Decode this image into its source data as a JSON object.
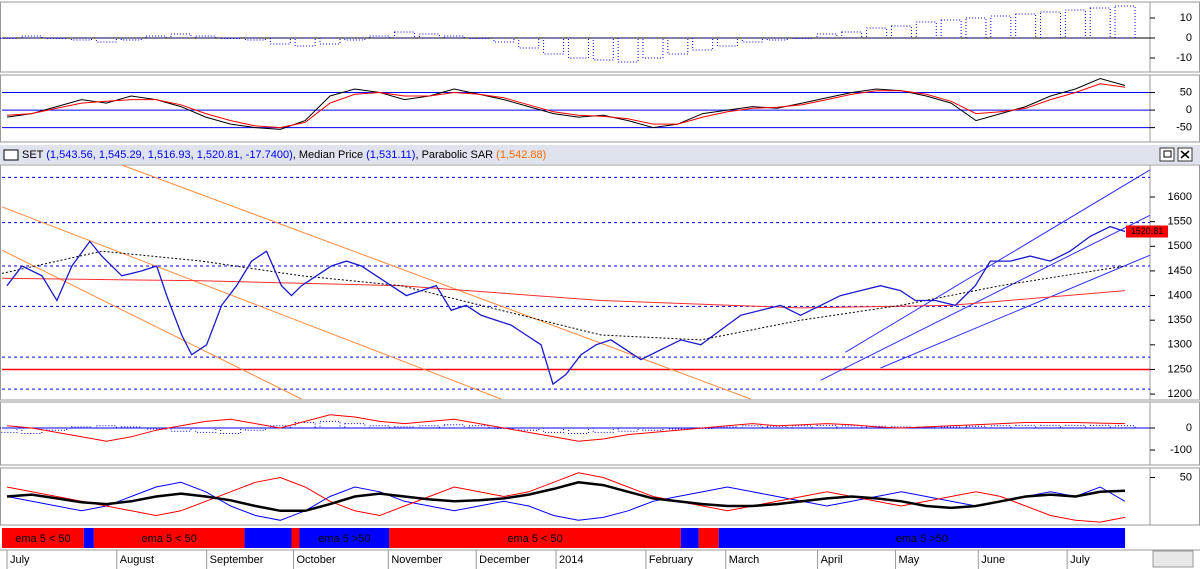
{
  "chart_data": {
    "type": "line",
    "xlim": [
      0,
      1150
    ],
    "xticks": [
      {
        "value": 5,
        "label": "July"
      },
      {
        "value": 115,
        "label": "August"
      },
      {
        "value": 205,
        "label": "September"
      },
      {
        "value": 292,
        "label": "October"
      },
      {
        "value": 387,
        "label": "November"
      },
      {
        "value": 475,
        "label": "December"
      },
      {
        "value": 555,
        "label": "2014"
      },
      {
        "value": 645,
        "label": "February"
      },
      {
        "value": 725,
        "label": "March"
      },
      {
        "value": 817,
        "label": "April"
      },
      {
        "value": 895,
        "label": "May"
      },
      {
        "value": 978,
        "label": "June"
      },
      {
        "value": 1067,
        "label": "July"
      }
    ],
    "header": [
      {
        "text": "SET ",
        "color": "#000000"
      },
      {
        "text": "(1,543.56, 1,545.29, 1,516.93, 1,520.81, -17.7400)",
        "color": "#0000ff"
      },
      {
        "text": ", Median Price ",
        "color": "#000000"
      },
      {
        "text": "(1,531.11)",
        "color": "#0000ff"
      },
      {
        "text": ", Parabolic SAR ",
        "color": "#000000"
      },
      {
        "text": "(1,542.88)",
        "color": "#ff6a00"
      }
    ],
    "macd": {
      "ylim": [
        -17,
        18
      ],
      "yticks": [
        10,
        0,
        -10
      ],
      "color": "#0000ff",
      "values": [
        0,
        1,
        0,
        -1,
        -2,
        -1,
        1,
        2,
        1,
        0,
        -1,
        -3,
        -4,
        -3,
        -1,
        1,
        3,
        2,
        1,
        0,
        -2,
        -5,
        -8,
        -10,
        -11,
        -12,
        -10,
        -8,
        -6,
        -4,
        -2,
        -1,
        0,
        2,
        3,
        5,
        6,
        8,
        9,
        10,
        11,
        12,
        13,
        14,
        15,
        16
      ]
    },
    "stochastic": {
      "ylim": [
        -91,
        100
      ],
      "yticks": [
        50,
        0,
        -50
      ],
      "levels": [
        50,
        0,
        -50
      ],
      "level_color": "#0000ff",
      "series": [
        {
          "color": "#000000",
          "values": [
            -20,
            -10,
            10,
            30,
            20,
            40,
            30,
            10,
            -20,
            -40,
            -50,
            -55,
            -30,
            40,
            60,
            50,
            30,
            40,
            60,
            45,
            30,
            10,
            -10,
            -20,
            -15,
            -30,
            -50,
            -40,
            -10,
            0,
            10,
            5,
            20,
            35,
            50,
            60,
            55,
            40,
            20,
            -30,
            -10,
            10,
            40,
            60,
            90,
            70
          ]
        },
        {
          "color": "#ff0000",
          "values": [
            -15,
            -10,
            5,
            20,
            25,
            30,
            30,
            15,
            -10,
            -30,
            -45,
            -50,
            -35,
            20,
            45,
            50,
            40,
            40,
            50,
            45,
            35,
            15,
            -5,
            -15,
            -18,
            -25,
            -40,
            -40,
            -20,
            -5,
            5,
            8,
            15,
            30,
            45,
            55,
            55,
            45,
            25,
            -10,
            -5,
            5,
            30,
            50,
            75,
            65
          ]
        }
      ]
    },
    "main": {
      "ylim": [
        1188,
        1665
      ],
      "yticks": [
        1600,
        1550,
        1500,
        1450,
        1400,
        1350,
        1300,
        1250,
        1200
      ],
      "last_value_label": "1520.81",
      "levels": [
        {
          "value": 1250,
          "color": "#ff0000",
          "dashed": false
        },
        {
          "value": 1210,
          "color": "#0000ff",
          "dashed": true
        },
        {
          "value": 1275,
          "color": "#0000ff",
          "dashed": true
        },
        {
          "value": 1378,
          "color": "#0000ff",
          "dashed": true
        },
        {
          "value": 1460,
          "color": "#0000ff",
          "dashed": true
        },
        {
          "value": 1548,
          "color": "#0000ff",
          "dashed": true
        },
        {
          "value": 1640,
          "color": "#0000ff",
          "dashed": true
        }
      ],
      "trendlines": [
        {
          "color": "#ff8c40",
          "x": [
            120,
            750
          ],
          "values": [
            1665,
            1190
          ]
        },
        {
          "color": "#ff8c40",
          "x": [
            0,
            500
          ],
          "values": [
            1580,
            1190
          ]
        },
        {
          "color": "#ff8c40",
          "x": [
            0,
            300
          ],
          "values": [
            1492,
            1190
          ]
        },
        {
          "color": "#3030ff",
          "x": [
            845,
            1150
          ],
          "values": [
            1285,
            1655
          ]
        },
        {
          "color": "#3030ff",
          "x": [
            820,
            1150
          ],
          "values": [
            1228,
            1563
          ]
        },
        {
          "color": "#3030ff",
          "x": [
            880,
            1150
          ],
          "values": [
            1253,
            1482
          ]
        }
      ],
      "series": [
        {
          "color": "#ff3030",
          "dashed": false,
          "width": 1,
          "x": [
            0,
            200,
            400,
            600,
            800,
            950,
            1125
          ],
          "values": [
            1435,
            1430,
            1420,
            1390,
            1375,
            1380,
            1410
          ]
        },
        {
          "color": "#000000",
          "dashed": true,
          "width": 1,
          "x": [
            0,
            100,
            200,
            300,
            400,
            500,
            600,
            700,
            800,
            900,
            1000,
            1125
          ],
          "values": [
            1445,
            1490,
            1470,
            1440,
            1420,
            1370,
            1320,
            1310,
            1350,
            1380,
            1420,
            1460
          ]
        },
        {
          "color": "#1a1acc",
          "dashed": false,
          "width": 1.3,
          "x": [
            5,
            20,
            40,
            55,
            70,
            88,
            100,
            120,
            140,
            155,
            165,
            180,
            190,
            205,
            220,
            235,
            250,
            265,
            280,
            290,
            300,
            315,
            330,
            345,
            360,
            375,
            390,
            405,
            420,
            435,
            450,
            465,
            480,
            495,
            510,
            525,
            540,
            552,
            565,
            580,
            595,
            610,
            625,
            640,
            660,
            680,
            700,
            720,
            740,
            760,
            780,
            800,
            820,
            840,
            860,
            880,
            900,
            915,
            935,
            955,
            975,
            990,
            1010,
            1030,
            1050,
            1070,
            1090,
            1110,
            1125
          ],
          "values": [
            1420,
            1460,
            1440,
            1390,
            1460,
            1510,
            1480,
            1440,
            1450,
            1460,
            1400,
            1320,
            1280,
            1300,
            1380,
            1420,
            1470,
            1490,
            1420,
            1400,
            1420,
            1440,
            1460,
            1470,
            1460,
            1440,
            1420,
            1400,
            1410,
            1420,
            1370,
            1380,
            1360,
            1350,
            1340,
            1320,
            1300,
            1220,
            1240,
            1280,
            1300,
            1310,
            1290,
            1270,
            1290,
            1310,
            1300,
            1330,
            1360,
            1370,
            1380,
            1360,
            1380,
            1400,
            1410,
            1420,
            1410,
            1390,
            1390,
            1380,
            1420,
            1470,
            1470,
            1480,
            1470,
            1490,
            1520,
            1540,
            1530
          ]
        }
      ]
    },
    "oscillator": {
      "ylim": [
        -168,
        118
      ],
      "yticks": [
        0,
        -100
      ],
      "histogram": {
        "color": "#0000ff",
        "values": [
          -20,
          -25,
          -10,
          5,
          10,
          5,
          -5,
          -15,
          -20,
          -25,
          -10,
          10,
          25,
          30,
          20,
          10,
          5,
          10,
          15,
          10,
          0,
          -10,
          -20,
          -25,
          -20,
          -15,
          -10,
          -5,
          0,
          5,
          10,
          8,
          10,
          12,
          10,
          8,
          5,
          3,
          5,
          8,
          10,
          12,
          12,
          12,
          12,
          10
        ]
      },
      "series": [
        {
          "color": "#ff0000",
          "values": [
            10,
            0,
            -20,
            -40,
            -60,
            -40,
            -10,
            10,
            30,
            40,
            20,
            0,
            30,
            60,
            50,
            30,
            20,
            30,
            40,
            20,
            0,
            -20,
            -40,
            -60,
            -50,
            -30,
            -20,
            -10,
            0,
            10,
            20,
            10,
            15,
            20,
            15,
            5,
            0,
            5,
            10,
            15,
            20,
            25,
            25,
            25,
            22,
            20
          ]
        }
      ]
    },
    "momentum": {
      "ylim": [
        0,
        60
      ],
      "yticks": [
        50
      ],
      "series": [
        {
          "color": "#0000ff",
          "width": 1,
          "values": [
            30,
            25,
            20,
            15,
            20,
            30,
            40,
            45,
            35,
            20,
            10,
            5,
            15,
            30,
            40,
            35,
            25,
            20,
            15,
            20,
            25,
            20,
            10,
            5,
            8,
            15,
            25,
            30,
            35,
            40,
            35,
            30,
            25,
            20,
            25,
            30,
            35,
            30,
            25,
            20,
            25,
            30,
            35,
            30,
            40,
            25
          ]
        },
        {
          "color": "#ff0000",
          "width": 1,
          "values": [
            40,
            35,
            30,
            25,
            20,
            15,
            10,
            15,
            25,
            35,
            45,
            50,
            40,
            25,
            15,
            10,
            20,
            30,
            40,
            35,
            30,
            35,
            45,
            55,
            50,
            40,
            30,
            25,
            20,
            15,
            20,
            25,
            30,
            35,
            30,
            25,
            20,
            25,
            30,
            35,
            30,
            20,
            10,
            5,
            3,
            8
          ]
        },
        {
          "color": "#000000",
          "width": 2.5,
          "values": [
            30,
            32,
            28,
            24,
            22,
            25,
            30,
            33,
            30,
            26,
            20,
            15,
            15,
            22,
            30,
            33,
            30,
            27,
            25,
            26,
            28,
            32,
            38,
            45,
            42,
            35,
            28,
            25,
            22,
            20,
            20,
            22,
            25,
            28,
            30,
            28,
            25,
            20,
            18,
            20,
            25,
            30,
            32,
            30,
            35,
            36
          ]
        }
      ]
    },
    "regimes": [
      {
        "start": 0,
        "end": 82,
        "color": "#ff0000",
        "label": "ema 5 < 50"
      },
      {
        "start": 82,
        "end": 92,
        "color": "#0000ff"
      },
      {
        "start": 92,
        "end": 243,
        "color": "#ff0000",
        "label": "ema 5 < 50"
      },
      {
        "start": 243,
        "end": 290,
        "color": "#0000ff"
      },
      {
        "start": 290,
        "end": 298,
        "color": "#ff0000"
      },
      {
        "start": 298,
        "end": 388,
        "color": "#0000ff",
        "label": "ema 5 >50"
      },
      {
        "start": 388,
        "end": 680,
        "color": "#ff0000",
        "label": "ema 5 < 50"
      },
      {
        "start": 680,
        "end": 698,
        "color": "#0000ff"
      },
      {
        "start": 698,
        "end": 718,
        "color": "#ff0000"
      },
      {
        "start": 718,
        "end": 1125,
        "color": "#0000ff",
        "label": "ema 5 >50"
      }
    ]
  }
}
